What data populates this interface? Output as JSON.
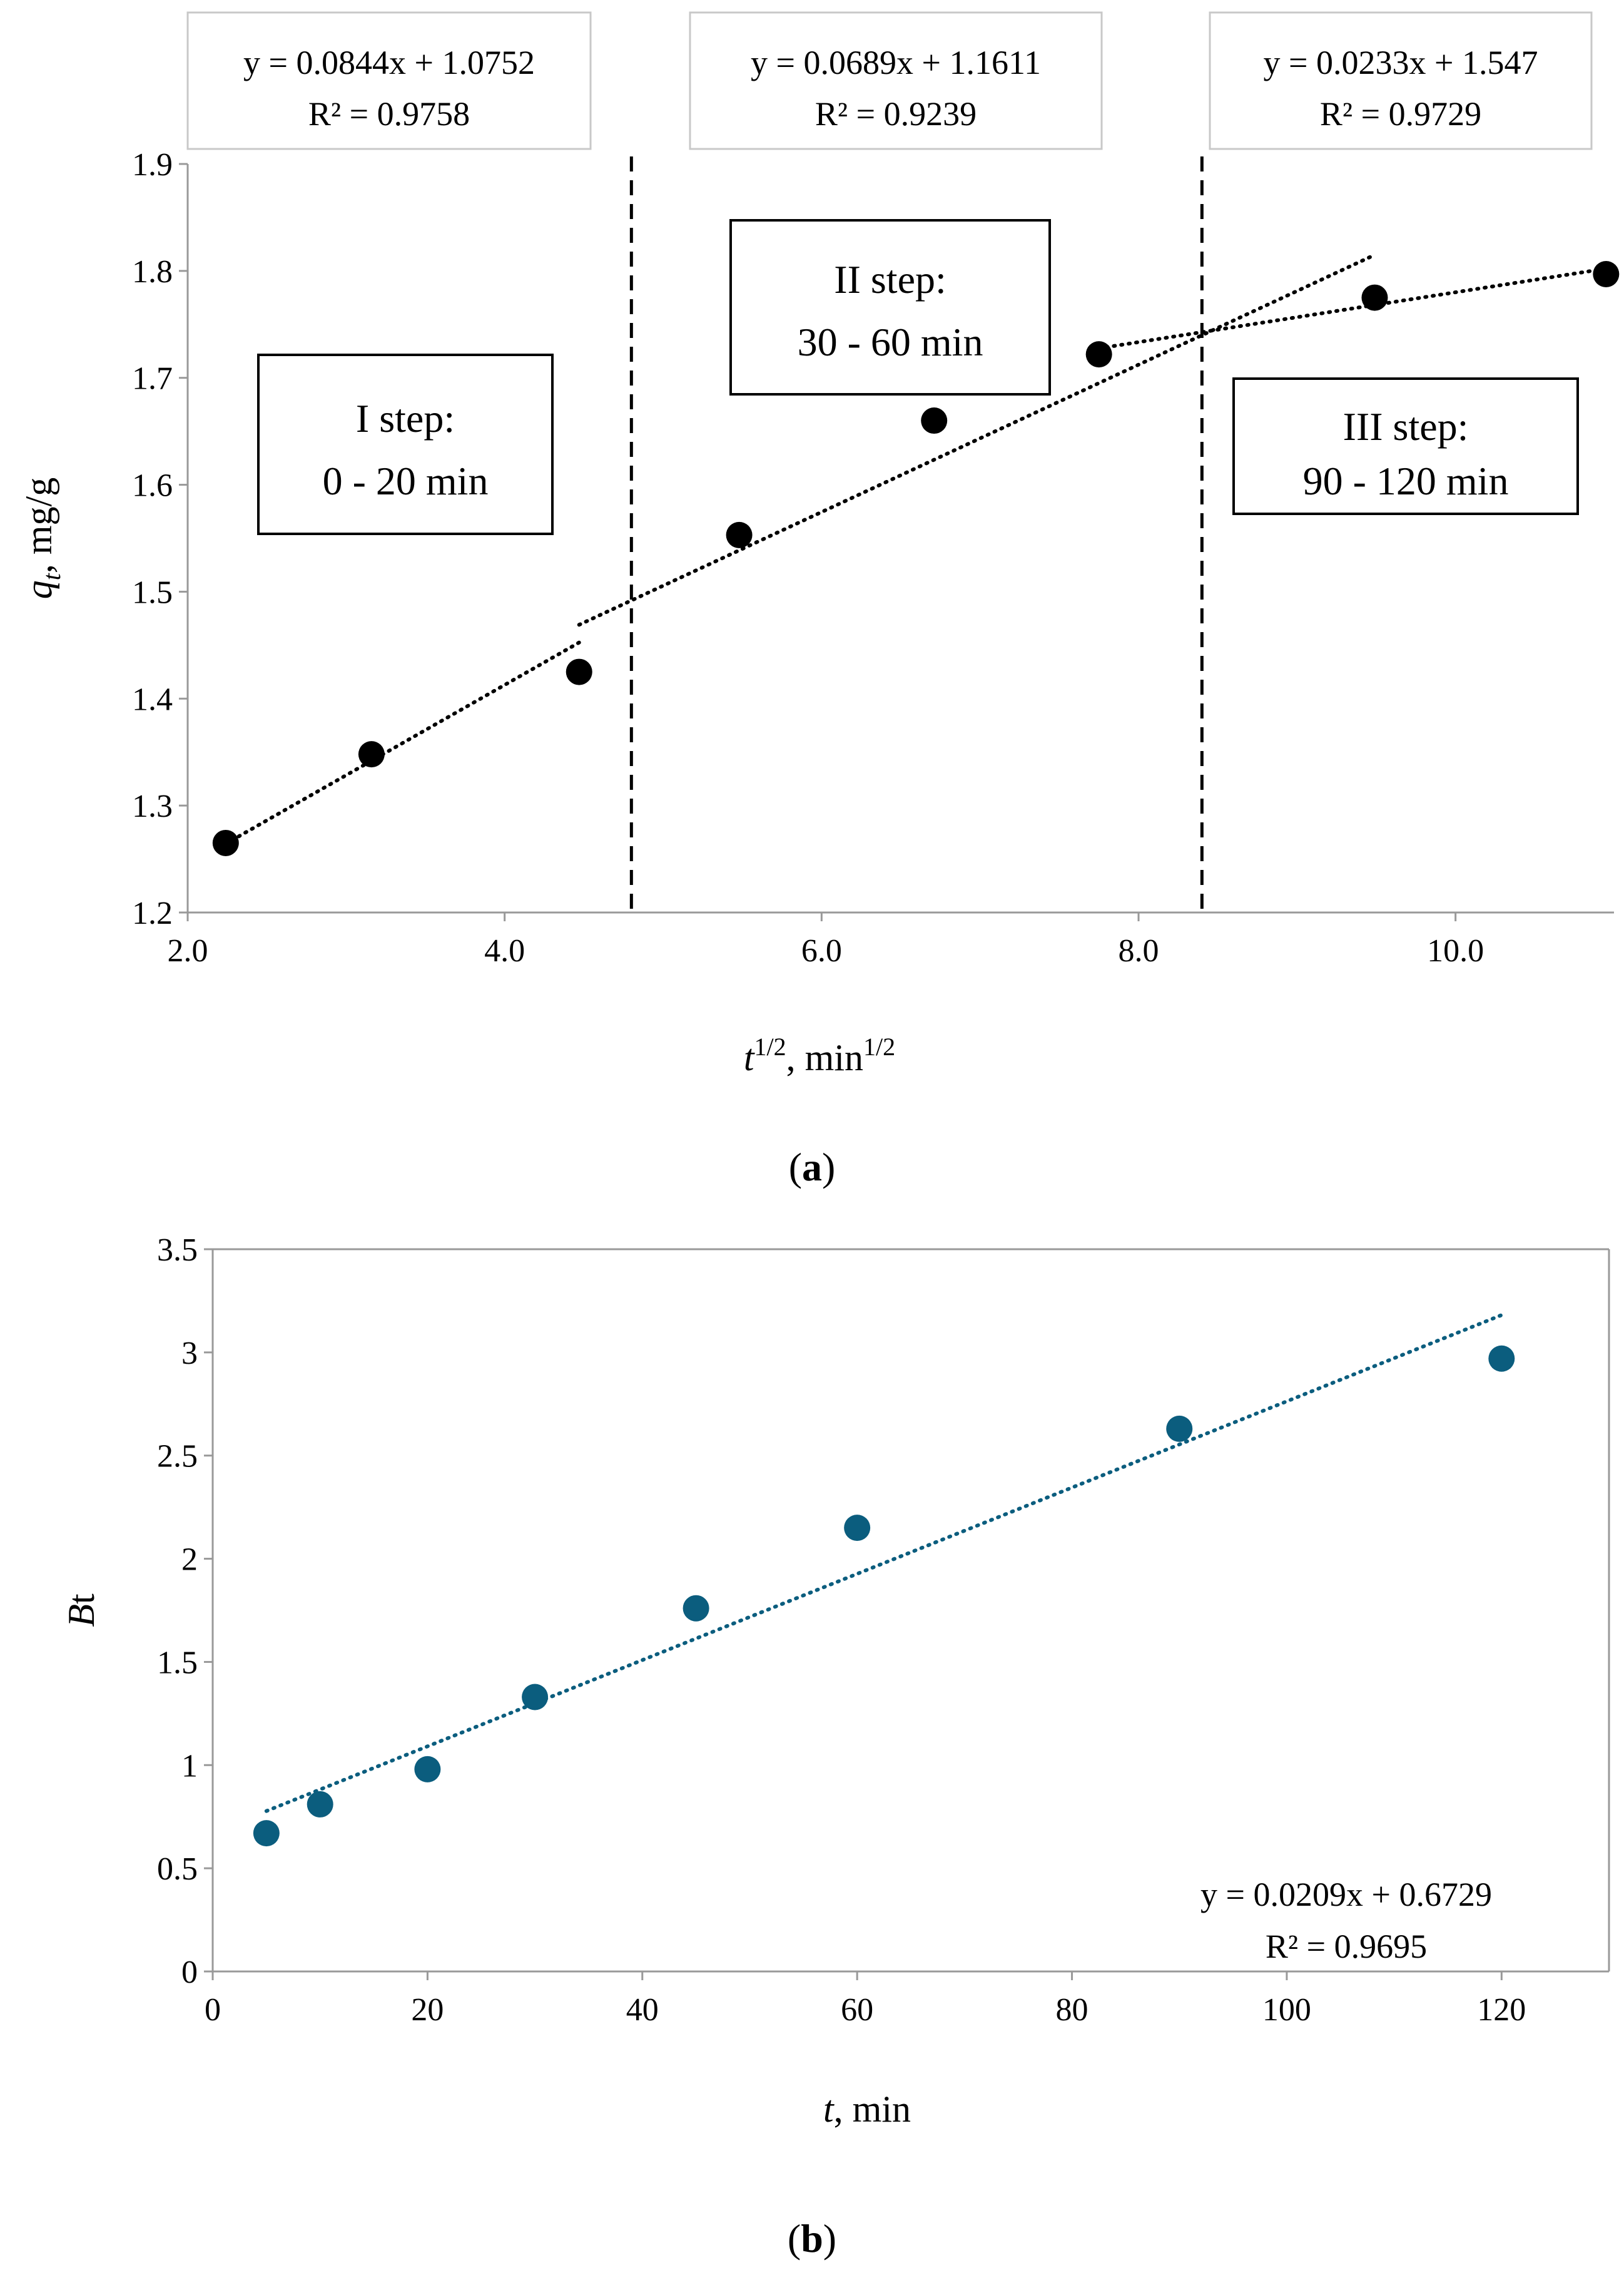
{
  "chart_data": [
    {
      "type": "scatter",
      "panel_label": "a",
      "xlabel": {
        "var": "t",
        "sup": "1/2",
        "unit": ", min",
        "unit_sup": "1/2"
      },
      "ylabel": {
        "var": "q",
        "sub": "t",
        "unit": ", mg/g"
      },
      "xlim": [
        2.0,
        11.0
      ],
      "ylim": [
        1.2,
        1.9
      ],
      "xticks": [
        "2.0",
        "4.0",
        "6.0",
        "8.0",
        "10.0"
      ],
      "yticks": [
        "1.2",
        "1.3",
        "1.4",
        "1.5",
        "1.6",
        "1.7",
        "1.8",
        "1.9"
      ],
      "series": [
        {
          "name": "qt",
          "color": "#000000",
          "x": [
            2.24,
            3.16,
            4.47,
            5.48,
            6.71,
            7.75,
            9.49,
            10.95
          ],
          "y": [
            1.265,
            1.348,
            1.425,
            1.553,
            1.66,
            1.722,
            1.775,
            1.797
          ]
        }
      ],
      "trendlines": [
        {
          "slope": 0.0844,
          "intercept": 1.0752,
          "x_range": [
            2.24,
            4.47
          ],
          "equation": "y = 0.0844x + 1.0752",
          "r2": "R² = 0.9758"
        },
        {
          "slope": 0.0689,
          "intercept": 1.1611,
          "x_range": [
            4.47,
            9.49
          ],
          "equation": "y = 0.0689x + 1.1611",
          "r2": "R² = 0.9239"
        },
        {
          "slope": 0.0233,
          "intercept": 1.547,
          "x_range": [
            7.75,
            10.95
          ],
          "equation": "y = 0.0233x + 1.547",
          "r2": "R² = 0.9729"
        }
      ],
      "dividers_x": [
        4.8,
        8.4
      ],
      "annotations": [
        {
          "line1": "I step:",
          "line2": "0 - 20 min"
        },
        {
          "line1": "II step:",
          "line2": "30 - 60 min"
        },
        {
          "line1": "III step:",
          "line2": "90 - 120 min"
        }
      ]
    },
    {
      "type": "scatter",
      "panel_label": "b",
      "xlabel": {
        "var": "t",
        "unit": ", min"
      },
      "ylabel": {
        "var": "B",
        "rest": "t"
      },
      "xlim": [
        0,
        130
      ],
      "ylim": [
        0,
        3.5
      ],
      "xticks": [
        "0",
        "20",
        "40",
        "60",
        "80",
        "100",
        "120"
      ],
      "yticks": [
        "0",
        "0.5",
        "1",
        "1.5",
        "2",
        "2.5",
        "3",
        "3.5"
      ],
      "series": [
        {
          "name": "Bt",
          "color": "#0b5d7e",
          "x": [
            5,
            10,
            20,
            30,
            45,
            60,
            90,
            120
          ],
          "y": [
            0.67,
            0.81,
            0.98,
            1.33,
            1.76,
            2.15,
            2.63,
            2.97
          ]
        }
      ],
      "trendlines": [
        {
          "slope": 0.0209,
          "intercept": 0.6729,
          "x_range": [
            5,
            120
          ],
          "equation": "y = 0.0209x + 0.6729",
          "r2": "R² = 0.9695"
        }
      ]
    }
  ]
}
